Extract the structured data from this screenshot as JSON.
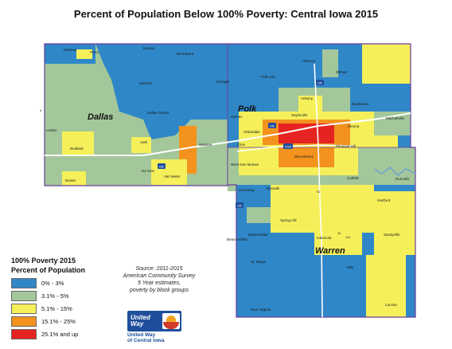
{
  "title": "Percent of Population Below 100% Poverty: Central Iowa 2015",
  "counties": [
    {
      "name": "Dallas"
    },
    {
      "name": "Polk"
    },
    {
      "name": "Warren"
    }
  ],
  "cities": [
    {
      "name": "Dawson"
    },
    {
      "name": "Bouton"
    },
    {
      "name": "Woodward"
    },
    {
      "name": "Minburn"
    },
    {
      "name": "Granger"
    },
    {
      "name": "Polk City"
    },
    {
      "name": "Alleman"
    },
    {
      "name": "Elkhart"
    },
    {
      "name": "Perry"
    },
    {
      "name": "Dallas Center"
    },
    {
      "name": "Ankeny"
    },
    {
      "name": "Bondurant"
    },
    {
      "name": "Mitchellville"
    },
    {
      "name": "Grimes"
    },
    {
      "name": "Saylorville"
    },
    {
      "name": "Altoona"
    },
    {
      "name": "Linden"
    },
    {
      "name": "Redfield"
    },
    {
      "name": "Adel"
    },
    {
      "name": "Waukee"
    },
    {
      "name": "Urbandale"
    },
    {
      "name": "Clive"
    },
    {
      "name": "Pleasant Hill"
    },
    {
      "name": "West Des Moines"
    },
    {
      "name": "Des Moines"
    },
    {
      "name": "De Soto"
    },
    {
      "name": "Van Meter"
    },
    {
      "name": "Dexter"
    },
    {
      "name": "Cumming"
    },
    {
      "name": "Norwalk"
    },
    {
      "name": "Carlisle"
    },
    {
      "name": "Hartford"
    },
    {
      "name": "Runnells"
    },
    {
      "name": "Spring Hill"
    },
    {
      "name": "Martensdale"
    },
    {
      "name": "Indianola"
    },
    {
      "name": "Sandyville"
    },
    {
      "name": "Beaconsfield"
    },
    {
      "name": "St. Marys"
    },
    {
      "name": "Milo"
    },
    {
      "name": "New Virginia"
    },
    {
      "name": "Lacona"
    }
  ],
  "highways": [
    "I35",
    "I80",
    "I235",
    "65",
    "69",
    "92",
    "44",
    "141",
    "5"
  ],
  "legend": {
    "title": "100% Poverty 2015",
    "subtitle": "Percent of Population",
    "items": [
      {
        "label": "0% - 3%",
        "color": "#2f87c8"
      },
      {
        "label": "3.1% - 5%",
        "color": "#a3c79a"
      },
      {
        "label": "5.1% - 15%",
        "color": "#f5f05a"
      },
      {
        "label": "15.1% - 25%",
        "color": "#f3931e"
      },
      {
        "label": "25.1% and up",
        "color": "#e52421"
      }
    ]
  },
  "source": {
    "line1": "Source: 2011-2015",
    "line2": "American Community Survey",
    "line3": "5 Year estimates,",
    "line4": "poverty by block groups"
  },
  "logo": {
    "line1": "United",
    "line2": "Way",
    "org_line1": "United Way",
    "org_line2": "of Central Iowa"
  }
}
